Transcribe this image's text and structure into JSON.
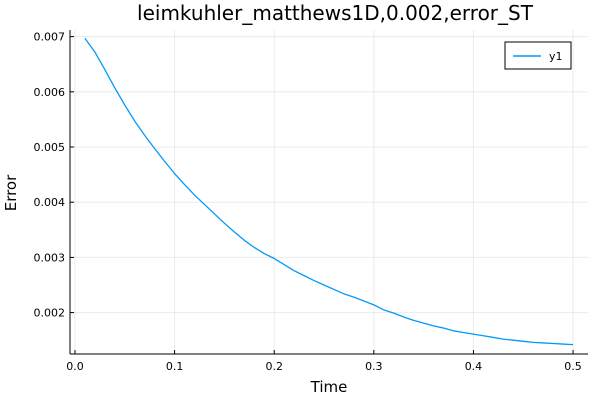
{
  "chart_data": {
    "type": "line",
    "title": "leimkuhler_matthews1D,0.002,error_ST",
    "xlabel": "Time",
    "ylabel": "Error",
    "xlim": [
      -0.005,
      0.515
    ],
    "ylim": [
      0.00125,
      0.00712
    ],
    "xticks": [
      0.0,
      0.1,
      0.2,
      0.3,
      0.4,
      0.5
    ],
    "xtick_labels": [
      "0.0",
      "0.1",
      "0.2",
      "0.3",
      "0.4",
      "0.5"
    ],
    "yticks": [
      0.002,
      0.003,
      0.004,
      0.005,
      0.006,
      0.007
    ],
    "ytick_labels": [
      "0.002",
      "0.003",
      "0.004",
      "0.005",
      "0.006",
      "0.007"
    ],
    "grid": true,
    "legend_position": "top-right",
    "series": [
      {
        "name": "y1",
        "color": "#009AFA",
        "x": [
          0.01,
          0.02,
          0.03,
          0.04,
          0.05,
          0.06,
          0.07,
          0.08,
          0.09,
          0.1,
          0.11,
          0.12,
          0.13,
          0.14,
          0.15,
          0.16,
          0.17,
          0.18,
          0.19,
          0.2,
          0.21,
          0.22,
          0.23,
          0.24,
          0.25,
          0.26,
          0.27,
          0.28,
          0.29,
          0.3,
          0.31,
          0.32,
          0.33,
          0.34,
          0.35,
          0.36,
          0.37,
          0.38,
          0.39,
          0.4,
          0.41,
          0.42,
          0.43,
          0.44,
          0.45,
          0.46,
          0.47,
          0.48,
          0.49,
          0.5
        ],
        "y": [
          0.00697,
          0.00672,
          0.0064,
          0.00607,
          0.00576,
          0.00547,
          0.00521,
          0.00497,
          0.00474,
          0.00452,
          0.00432,
          0.00413,
          0.00396,
          0.00379,
          0.00362,
          0.00346,
          0.00331,
          0.00318,
          0.00307,
          0.00298,
          0.00287,
          0.00276,
          0.00267,
          0.00258,
          0.0025,
          0.00242,
          0.00234,
          0.00228,
          0.00221,
          0.00214,
          0.00205,
          0.00199,
          0.00192,
          0.00186,
          0.00181,
          0.00176,
          0.00172,
          0.00167,
          0.00164,
          0.00161,
          0.00158,
          0.00155,
          0.00152,
          0.0015,
          0.00148,
          0.00146,
          0.00145,
          0.00144,
          0.00143,
          0.00142
        ]
      }
    ]
  }
}
